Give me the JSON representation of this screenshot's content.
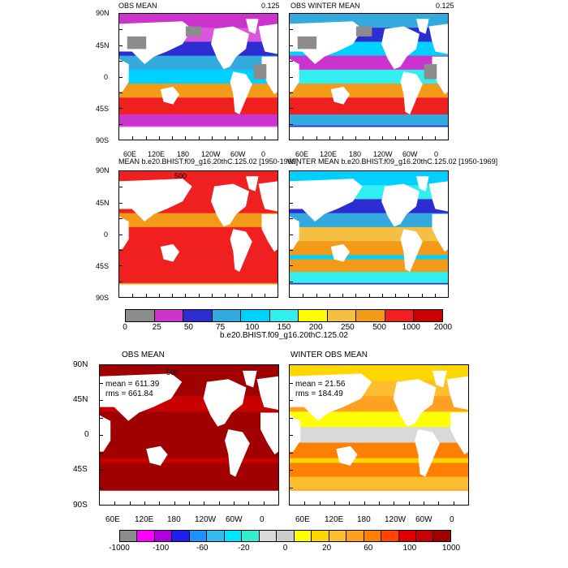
{
  "panels": [
    {
      "id": "p1",
      "title": "OBS MEAN",
      "value": "0.125",
      "bg": "obs_a",
      "show_lat": true,
      "show_lon": true
    },
    {
      "id": "p2",
      "title": "OBS WINTER MEAN",
      "value": "0.125",
      "bg": "obs_w",
      "show_lat": false,
      "show_lon": true
    },
    {
      "id": "p3",
      "title": "MEAN b.e20.BHIST.f09_g16.20thC.125.02 [1950-1969]",
      "value": "",
      "inlabel": "500",
      "bg": "model_a",
      "show_lat": true,
      "show_lon": false
    },
    {
      "id": "p4",
      "title": "WINTER MEAN b.e20.BHIST.f09_g16.20thC.125.02 [1950-1969]",
      "value": "",
      "bg": "model_w",
      "show_lat": false,
      "show_lon": false
    },
    {
      "id": "p5",
      "title": "OBS MEAN",
      "value": "",
      "inlabel": "500",
      "bg": "diff_a",
      "show_lat": true,
      "show_lon": true,
      "stats": {
        "mean": "mean = 611.39",
        "rms": "rms = 661.84"
      }
    },
    {
      "id": "p6",
      "title": "WINTER OBS MEAN",
      "value": "",
      "bg": "diff_w",
      "show_lat": false,
      "show_lon": true,
      "stats": {
        "mean": "mean = 21.56",
        "rms": "rms = 184.49"
      }
    }
  ],
  "lat_labels": [
    "90N",
    "45N",
    "0",
    "45S",
    "90S"
  ],
  "lon_labels": [
    "60E",
    "120E",
    "180",
    "120W",
    "60W",
    "0"
  ],
  "colorbar_top": {
    "title": "b.e20.BHIST.f09_g16.20thC.125.02",
    "labels": [
      "0",
      "25",
      "50",
      "75",
      "100",
      "150",
      "200",
      "250",
      "500",
      "1000",
      "2000"
    ],
    "colors": [
      "#8c8c8c",
      "#cc33cc",
      "#2d2dd2",
      "#33aadd",
      "#00d0ff",
      "#33eeee",
      "#ffff00",
      "#f5c042",
      "#f39a18",
      "#f02020",
      "#c80000"
    ]
  },
  "colorbar_bottom": {
    "labels": [
      "-1000",
      "-100",
      "-60",
      "-20",
      "0",
      "20",
      "60",
      "100",
      "1000"
    ],
    "colors": [
      "#8c8c8c",
      "#ff00ff",
      "#b000e0",
      "#2020ee",
      "#1e90ff",
      "#33bbee",
      "#00e5ff",
      "#33eecc",
      "#d9d9d9",
      "#cccccc",
      "#ffff00",
      "#ffd700",
      "#ffbe30",
      "#ffa020",
      "#ff7f00",
      "#ff4500",
      "#e00000",
      "#c80000",
      "#a00000"
    ]
  }
}
